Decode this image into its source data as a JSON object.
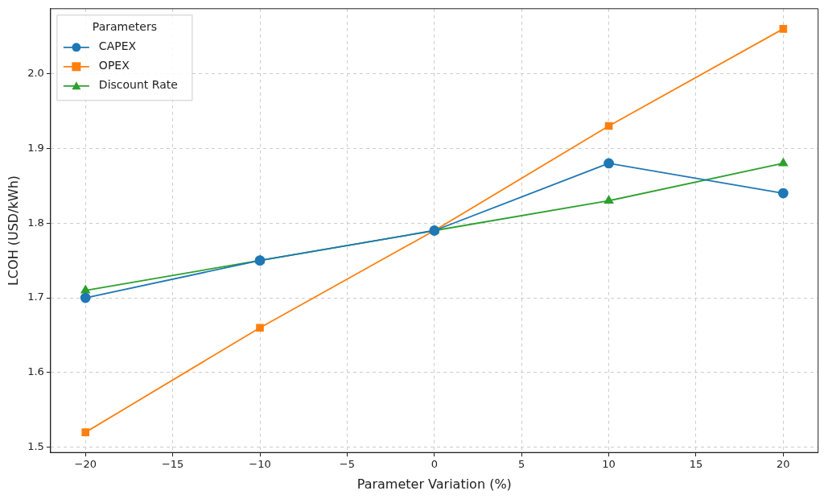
{
  "chart_data": {
    "type": "line",
    "xlabel": "Parameter Variation (%)",
    "ylabel": "LCOH (USD/kWh)",
    "legend_title": "Parameters",
    "x": [
      -20,
      -10,
      0,
      10,
      20
    ],
    "series": [
      {
        "name": "CAPEX",
        "color": "#1f77b4",
        "marker": "circle",
        "values": [
          1.7,
          1.75,
          1.79,
          1.88,
          1.84
        ]
      },
      {
        "name": "OPEX",
        "color": "#ff7f0e",
        "marker": "square",
        "values": [
          1.52,
          1.66,
          1.79,
          1.93,
          2.06
        ]
      },
      {
        "name": "Discount Rate",
        "color": "#2ca02c",
        "marker": "triangle",
        "values": [
          1.71,
          1.75,
          1.79,
          1.83,
          1.88
        ]
      }
    ],
    "xlim": [
      -22,
      22
    ],
    "xticks": [
      {
        "value": -20,
        "label": "−20"
      },
      {
        "value": -15,
        "label": "−15"
      },
      {
        "value": -10,
        "label": "−10"
      },
      {
        "value": -5,
        "label": "−5"
      },
      0,
      5,
      10,
      15,
      20
    ],
    "ylim": [
      1.493,
      2.087
    ],
    "yticks": [
      {
        "value": 1.5,
        "label": "1.5"
      },
      {
        "value": 1.6,
        "label": "1.6"
      },
      {
        "value": 1.7,
        "label": "1.7"
      },
      {
        "value": 1.8,
        "label": "1.8"
      },
      {
        "value": 1.9,
        "label": "1.9"
      },
      {
        "value": 2.0,
        "label": "2.0"
      }
    ],
    "grid": true,
    "legend": "top left",
    "line_style": "solid"
  }
}
